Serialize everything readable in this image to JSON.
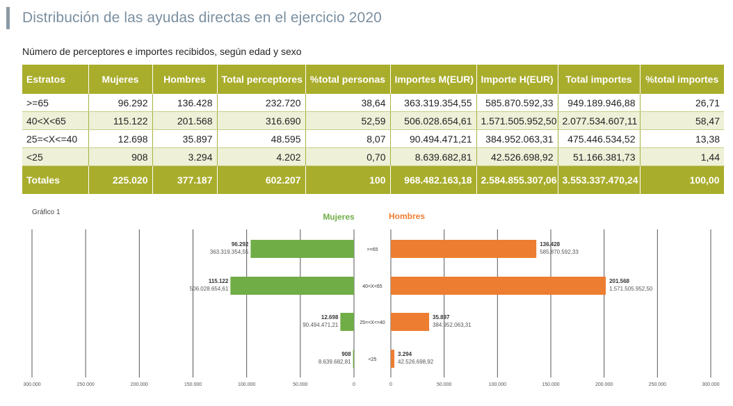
{
  "page": {
    "title": "Distribución de las ayudas directas en el ejercicio 2020",
    "subtitle": "Número de perceptores e importes recibidos, según edad y sexo"
  },
  "table": {
    "headers": [
      "Estratos",
      "Mujeres",
      "Hombres",
      "Total perceptores",
      "%total personas",
      "Importes M(EUR)",
      "Importe H(EUR)",
      "Total importes",
      "%total importes"
    ],
    "rows": [
      [
        ">=65",
        "96.292",
        "136.428",
        "232.720",
        "38,64",
        "363.319.354,55",
        "585.870.592,33",
        "949.189.946,88",
        "26,71"
      ],
      [
        "40<X<65",
        "115.122",
        "201.568",
        "316.690",
        "52,59",
        "506.028.654,61",
        "1.571.505.952,50",
        "2.077.534.607,11",
        "58,47"
      ],
      [
        "25=<X<=40",
        "12.698",
        "35.897",
        "48.595",
        "8,07",
        "90.494.471,21",
        "384.952.063,31",
        "475.446.534,52",
        "13,38"
      ],
      [
        "<25",
        "908",
        "3.294",
        "4.202",
        "0,70",
        "8.639.682,81",
        "42.526.698,92",
        "51.166.381,73",
        "1,44"
      ]
    ],
    "totals": [
      "Totales",
      "225.020",
      "377.187",
      "602.207",
      "100",
      "968.482.163,18",
      "2.584.855.307,06",
      "3.553.337.470,24",
      "100,00"
    ]
  },
  "chart_data": {
    "type": "bar",
    "orientation": "horizontal-butterfly",
    "label": "Gráfico 1",
    "categories": [
      ">=65",
      "40<X<65",
      "25=<X<=40",
      "<25"
    ],
    "series": [
      {
        "name": "Mujeres",
        "color": "#70ad47",
        "values": [
          96292,
          115122,
          12698,
          908
        ],
        "value_labels": [
          "96.292",
          "115.122",
          "12.698",
          "908"
        ],
        "amount_labels": [
          "363.319.354,55",
          "506.028.654,61",
          "90.494.471,21",
          "8.639.682,81"
        ]
      },
      {
        "name": "Hombres",
        "color": "#ed7d31",
        "values": [
          136428,
          201568,
          35897,
          3294
        ],
        "value_labels": [
          "136.428",
          "201.568",
          "35.897",
          "3.294"
        ],
        "amount_labels": [
          "585.870.592,33",
          "1.571.505.952,50",
          "384.952.063,31",
          "42.526.698,92"
        ]
      }
    ],
    "left_axis_ticks": [
      300000,
      250000,
      200000,
      150000,
      100000,
      50000,
      0
    ],
    "left_axis_tick_labels": [
      "300.000",
      "250.000",
      "200.000",
      "150.000",
      "100.000",
      "50.000",
      "0"
    ],
    "right_axis_ticks": [
      0,
      50000,
      100000,
      150000,
      200000,
      250000,
      300000
    ],
    "right_axis_tick_labels": [
      "0",
      "50.000",
      "100.000",
      "150.000",
      "200.000",
      "250.000",
      "300.000"
    ],
    "xlim": [
      0,
      300000
    ],
    "grid": true
  }
}
